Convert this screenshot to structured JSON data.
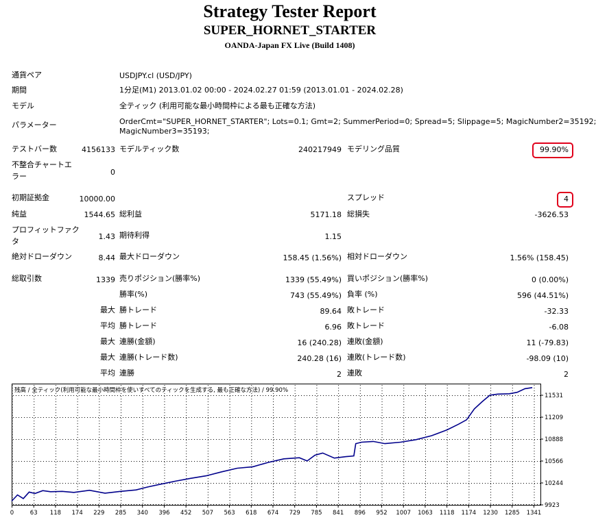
{
  "header": {
    "title": "Strategy Tester Report",
    "ea_name": "SUPER_HORNET_STARTER",
    "server": "OANDA-Japan FX Live (Build 1408)"
  },
  "info": {
    "symbol_label": "通貨ペア",
    "symbol_value": "USDJPY.cl (USD/JPY)",
    "period_label": "期間",
    "period_value": "1分足(M1) 2013.01.02 00:00 - 2024.02.27 01:59 (2013.01.01 - 2024.02.28)",
    "model_label": "モデル",
    "model_value": "全ティック (利用可能な最小時間枠による最も正確な方法)",
    "params_label": "パラメーター",
    "params_line1": "OrderCmt=\"SUPER_HORNET_STARTER\"; Lots=0.1; Gmt=2; SummerPeriod=0; Spread=5; Slippage=5; MagicNumber2=35192;",
    "params_line2": "MagicNumber3=35193;"
  },
  "stats": {
    "bars_label": "テストバー数",
    "bars_value": "4156133",
    "ticks_label": "モデルティック数",
    "ticks_value": "240217949",
    "quality_label": "モデリング品質",
    "quality_value": "99.90%",
    "mismatch_label_1": "不整合チャートエ",
    "mismatch_label_2": "ラー",
    "mismatch_value": "0",
    "deposit_label": "初期証拠金",
    "deposit_value": "10000.00",
    "spread_label": "スプレッド",
    "spread_value": "4",
    "net_label": "純益",
    "net_value": "1544.65",
    "gross_profit_label": "総利益",
    "gross_profit_value": "5171.18",
    "gross_loss_label": "総損失",
    "gross_loss_value": "-3626.53",
    "pf_label_1": "プロフィットファク",
    "pf_label_2": "タ",
    "pf_value": "1.43",
    "expected_label": "期待利得",
    "expected_value": "1.15",
    "abs_dd_label": "絶対ドローダウン",
    "abs_dd_value": "8.44",
    "max_dd_label": "最大ドローダウン",
    "max_dd_value": "158.45 (1.56%)",
    "rel_dd_label": "相対ドローダウン",
    "rel_dd_value": "1.56% (158.45)",
    "trades_label": "総取引数",
    "trades_value": "1339",
    "short_label": "売りポジション(勝率%)",
    "short_value": "1339 (55.49%)",
    "long_label": "買いポジション(勝率%)",
    "long_value": "0 (0.00%)",
    "win_label": "勝率(%)",
    "win_value": "743 (55.49%)",
    "loss_label": "負率 (%)",
    "loss_value": "596 (44.51%)",
    "largest_prefix": "最大",
    "largest_win_label": "勝トレード",
    "largest_win_value": "89.64",
    "largest_loss_label": "敗トレード",
    "largest_loss_value": "-32.33",
    "average_prefix": "平均",
    "avg_win_label": "勝トレード",
    "avg_win_value": "6.96",
    "avg_loss_label": "敗トレード",
    "avg_loss_value": "-6.08",
    "max_prefix_1": "最大",
    "max_cons_wins_label": "連勝(金額)",
    "max_cons_wins_value": "16 (240.28)",
    "max_cons_losses_label": "連敗(金額)",
    "max_cons_losses_value": "11 (-79.83)",
    "max_prefix_2": "最大",
    "max_cons_profit_label": "連勝(トレード数)",
    "max_cons_profit_value": "240.28 (16)",
    "max_cons_loss_label": "連敗(トレード数)",
    "max_cons_loss_value": "-98.09 (10)",
    "avg_prefix_2": "平均",
    "avg_cons_wins_label": "連勝",
    "avg_cons_wins_value": "2",
    "avg_cons_losses_label": "連敗",
    "avg_cons_losses_value": "2"
  },
  "colors": {
    "highlight": "#e0001b",
    "balance_line": "#00008b",
    "grid": "#000000"
  },
  "chart_data": {
    "type": "line",
    "title": "残高 / 全ティック(利用可能な最小時間枠を使いすべてのティックを生成する, 最も正確な方法) / 99.90%",
    "x_ticks": [
      "0",
      "63",
      "118",
      "174",
      "229",
      "285",
      "340",
      "396",
      "452",
      "507",
      "563",
      "618",
      "674",
      "729",
      "785",
      "841",
      "896",
      "952",
      "1007",
      "1063",
      "1118",
      "1174",
      "1230",
      "1285",
      "1341"
    ],
    "y_ticks": [
      "11531",
      "11209",
      "10888",
      "10566",
      "10244",
      "9923"
    ],
    "xlim": [
      0,
      1360
    ],
    "ylim": [
      9923,
      11600
    ],
    "series": [
      {
        "x": [
          0,
          15,
          30,
          45,
          60,
          80,
          100,
          130,
          160,
          200,
          240,
          280,
          320,
          350,
          380,
          420,
          460,
          500,
          540,
          580,
          620,
          660,
          700,
          740,
          760,
          780,
          800,
          830,
          860,
          880,
          885,
          900,
          930,
          960,
          1000,
          1040,
          1080,
          1120,
          1150,
          1170,
          1190,
          1210,
          1230,
          1250,
          1280,
          1300,
          1320,
          1339
        ],
        "y": [
          9975,
          10060,
          10010,
          10100,
          10080,
          10120,
          10105,
          10110,
          10095,
          10125,
          10085,
          10110,
          10130,
          10170,
          10205,
          10250,
          10290,
          10325,
          10380,
          10430,
          10450,
          10510,
          10560,
          10575,
          10530,
          10610,
          10640,
          10570,
          10590,
          10600,
          10770,
          10790,
          10800,
          10770,
          10790,
          10825,
          10880,
          10960,
          11040,
          11100,
          11250,
          11350,
          11440,
          11455,
          11460,
          11480,
          11530,
          11545
        ]
      }
    ]
  }
}
